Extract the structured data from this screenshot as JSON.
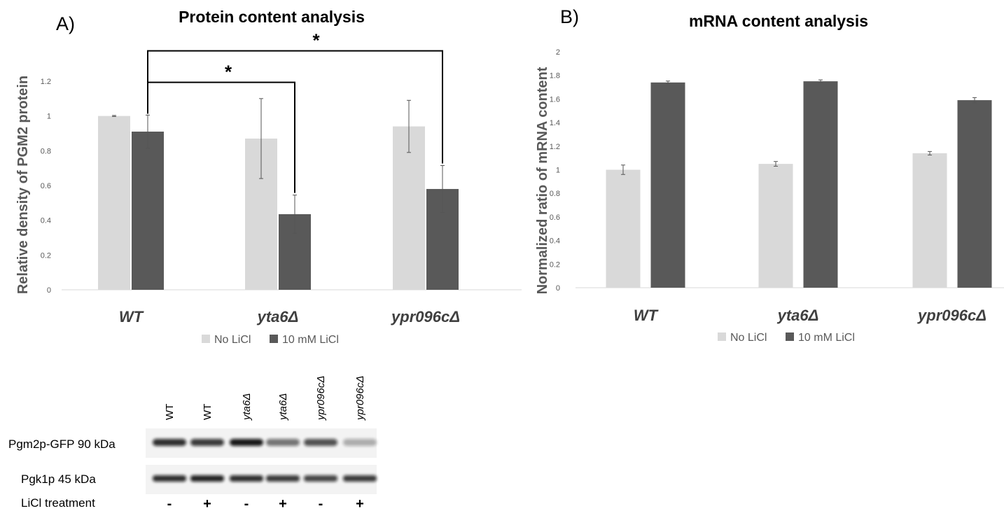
{
  "panels": {
    "a_label": "A)",
    "b_label": "B)"
  },
  "colors": {
    "no_licl": "#d9d9d9",
    "licl": "#595959",
    "axis": "#d9d9d9",
    "bracket": "#000000"
  },
  "chart_data": [
    {
      "type": "bar",
      "title": "Protein content analysis",
      "xlabel": "",
      "ylabel": "Relative density of PGM2 protein",
      "categories": [
        "WT",
        "yta6Δ",
        "ypr096cΔ"
      ],
      "ylim": [
        0,
        1.2
      ],
      "yticks": [
        "0",
        "0.2",
        "0.4",
        "0.6",
        "0.8",
        "1",
        "1.2"
      ],
      "grid": false,
      "legend": "bottom",
      "series": [
        {
          "name": "No LiCl",
          "values": [
            1.0,
            0.87,
            0.94
          ],
          "errors": [
            0.003,
            0.23,
            0.15
          ]
        },
        {
          "name": "10 mM LiCl",
          "values": [
            0.91,
            0.435,
            0.58
          ],
          "errors": [
            0.095,
            0.11,
            0.135
          ]
        }
      ],
      "annotations": [
        {
          "text": "*",
          "from": "WT",
          "to": "yta6Δ"
        },
        {
          "text": "*",
          "from": "WT",
          "to": "ypr096cΔ"
        }
      ]
    },
    {
      "type": "bar",
      "title": "mRNA content analysis",
      "xlabel": "",
      "ylabel": "Normalized ratio of mRNA content",
      "categories": [
        "WT",
        "yta6Δ",
        "ypr096cΔ"
      ],
      "ylim": [
        0,
        2
      ],
      "yticks": [
        "0",
        "0.2",
        "0.4",
        "0.6",
        "0.8",
        "1",
        "1.2",
        "1.4",
        "1.6",
        "1.8",
        "2"
      ],
      "grid": false,
      "legend": "bottom",
      "series": [
        {
          "name": "No LiCl",
          "values": [
            1.0,
            1.05,
            1.14
          ],
          "errors": [
            0.04,
            0.02,
            0.015
          ]
        },
        {
          "name": "10 mM LiCl",
          "values": [
            1.74,
            1.75,
            1.59
          ],
          "errors": [
            0.012,
            0.012,
            0.022
          ]
        }
      ]
    }
  ],
  "blot": {
    "lanes": [
      "WT",
      "WT",
      "yta6Δ",
      "yta6Δ",
      "ypr096cΔ",
      "ypr096cΔ"
    ],
    "row1_label": "Pgm2p-GFP 90 kDa",
    "row2_label": "Pgk1p 45 kDa",
    "row3_label": "LiCl treatment",
    "treatment": [
      "-",
      "+",
      "-",
      "+",
      "-",
      "+"
    ],
    "row1_intensity": [
      0.85,
      0.8,
      0.95,
      0.55,
      0.7,
      0.3
    ],
    "row2_intensity": [
      0.85,
      0.9,
      0.85,
      0.8,
      0.75,
      0.8
    ]
  }
}
